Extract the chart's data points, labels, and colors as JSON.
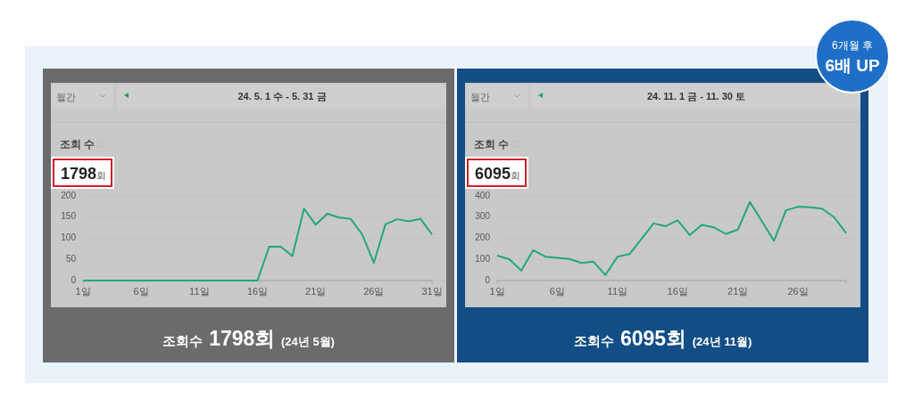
{
  "chart_data": [
    {
      "type": "line",
      "title": "조회 수",
      "subtitle": "1798회",
      "x": [
        1,
        2,
        3,
        4,
        5,
        6,
        7,
        8,
        9,
        10,
        11,
        12,
        13,
        14,
        15,
        16,
        17,
        18,
        19,
        20,
        21,
        22,
        23,
        24,
        25,
        26,
        27,
        28,
        29,
        30,
        31
      ],
      "series": [
        {
          "color": "#22a876",
          "values": [
            0,
            0,
            0,
            0,
            0,
            0,
            0,
            0,
            0,
            0,
            0,
            0,
            0,
            0,
            0,
            0,
            80,
            80,
            58,
            170,
            132,
            158,
            149,
            146,
            109,
            42,
            133,
            145,
            140,
            146,
            109
          ]
        }
      ],
      "xlim": [
        1,
        31
      ],
      "xticks": [
        {
          "value": 1,
          "label": "1일"
        },
        {
          "value": 6,
          "label": "6일"
        },
        {
          "value": 11,
          "label": "11일"
        },
        {
          "value": 16,
          "label": "16일"
        },
        {
          "value": 21,
          "label": "21일"
        },
        {
          "value": 26,
          "label": "26일"
        },
        {
          "value": 31,
          "label": "31일"
        }
      ],
      "ylim": [
        0,
        200
      ],
      "yticks": [
        0,
        50,
        100,
        150,
        200
      ],
      "grid": "y",
      "annotations": [
        "월간",
        "24. 5. 1 수 - 5. 31 금",
        "조회수 1798회 (24년 5월)"
      ]
    },
    {
      "type": "line",
      "title": "조회 수",
      "subtitle": "6095회",
      "x": [
        1,
        2,
        3,
        4,
        5,
        6,
        7,
        8,
        9,
        10,
        11,
        12,
        13,
        14,
        15,
        16,
        17,
        18,
        19,
        20,
        21,
        22,
        23,
        24,
        25,
        26,
        27,
        28,
        29,
        30
      ],
      "series": [
        {
          "color": "#22a876",
          "values": [
            118,
            101,
            47,
            144,
            113,
            107,
            102,
            83,
            89,
            26,
            113,
            125,
            197,
            270,
            257,
            285,
            215,
            263,
            252,
            220,
            241,
            371,
            280,
            188,
            332,
            349,
            346,
            340,
            299,
            224
          ]
        }
      ],
      "xlim": [
        1,
        30
      ],
      "xticks": [
        {
          "value": 1,
          "label": "1일"
        },
        {
          "value": 6,
          "label": "6일"
        },
        {
          "value": 11,
          "label": "11일"
        },
        {
          "value": 16,
          "label": "16일"
        },
        {
          "value": 21,
          "label": "21일"
        },
        {
          "value": 26,
          "label": "26일"
        }
      ],
      "ylim": [
        0,
        400
      ],
      "yticks": [
        0,
        100,
        200,
        300,
        400
      ],
      "grid": "y",
      "annotations": [
        "월간",
        "24. 11. 1 금 - 11. 30 토",
        "조회수 6095회 (24년 11월)",
        "6개월 후",
        "6배 UP"
      ]
    }
  ]
}
